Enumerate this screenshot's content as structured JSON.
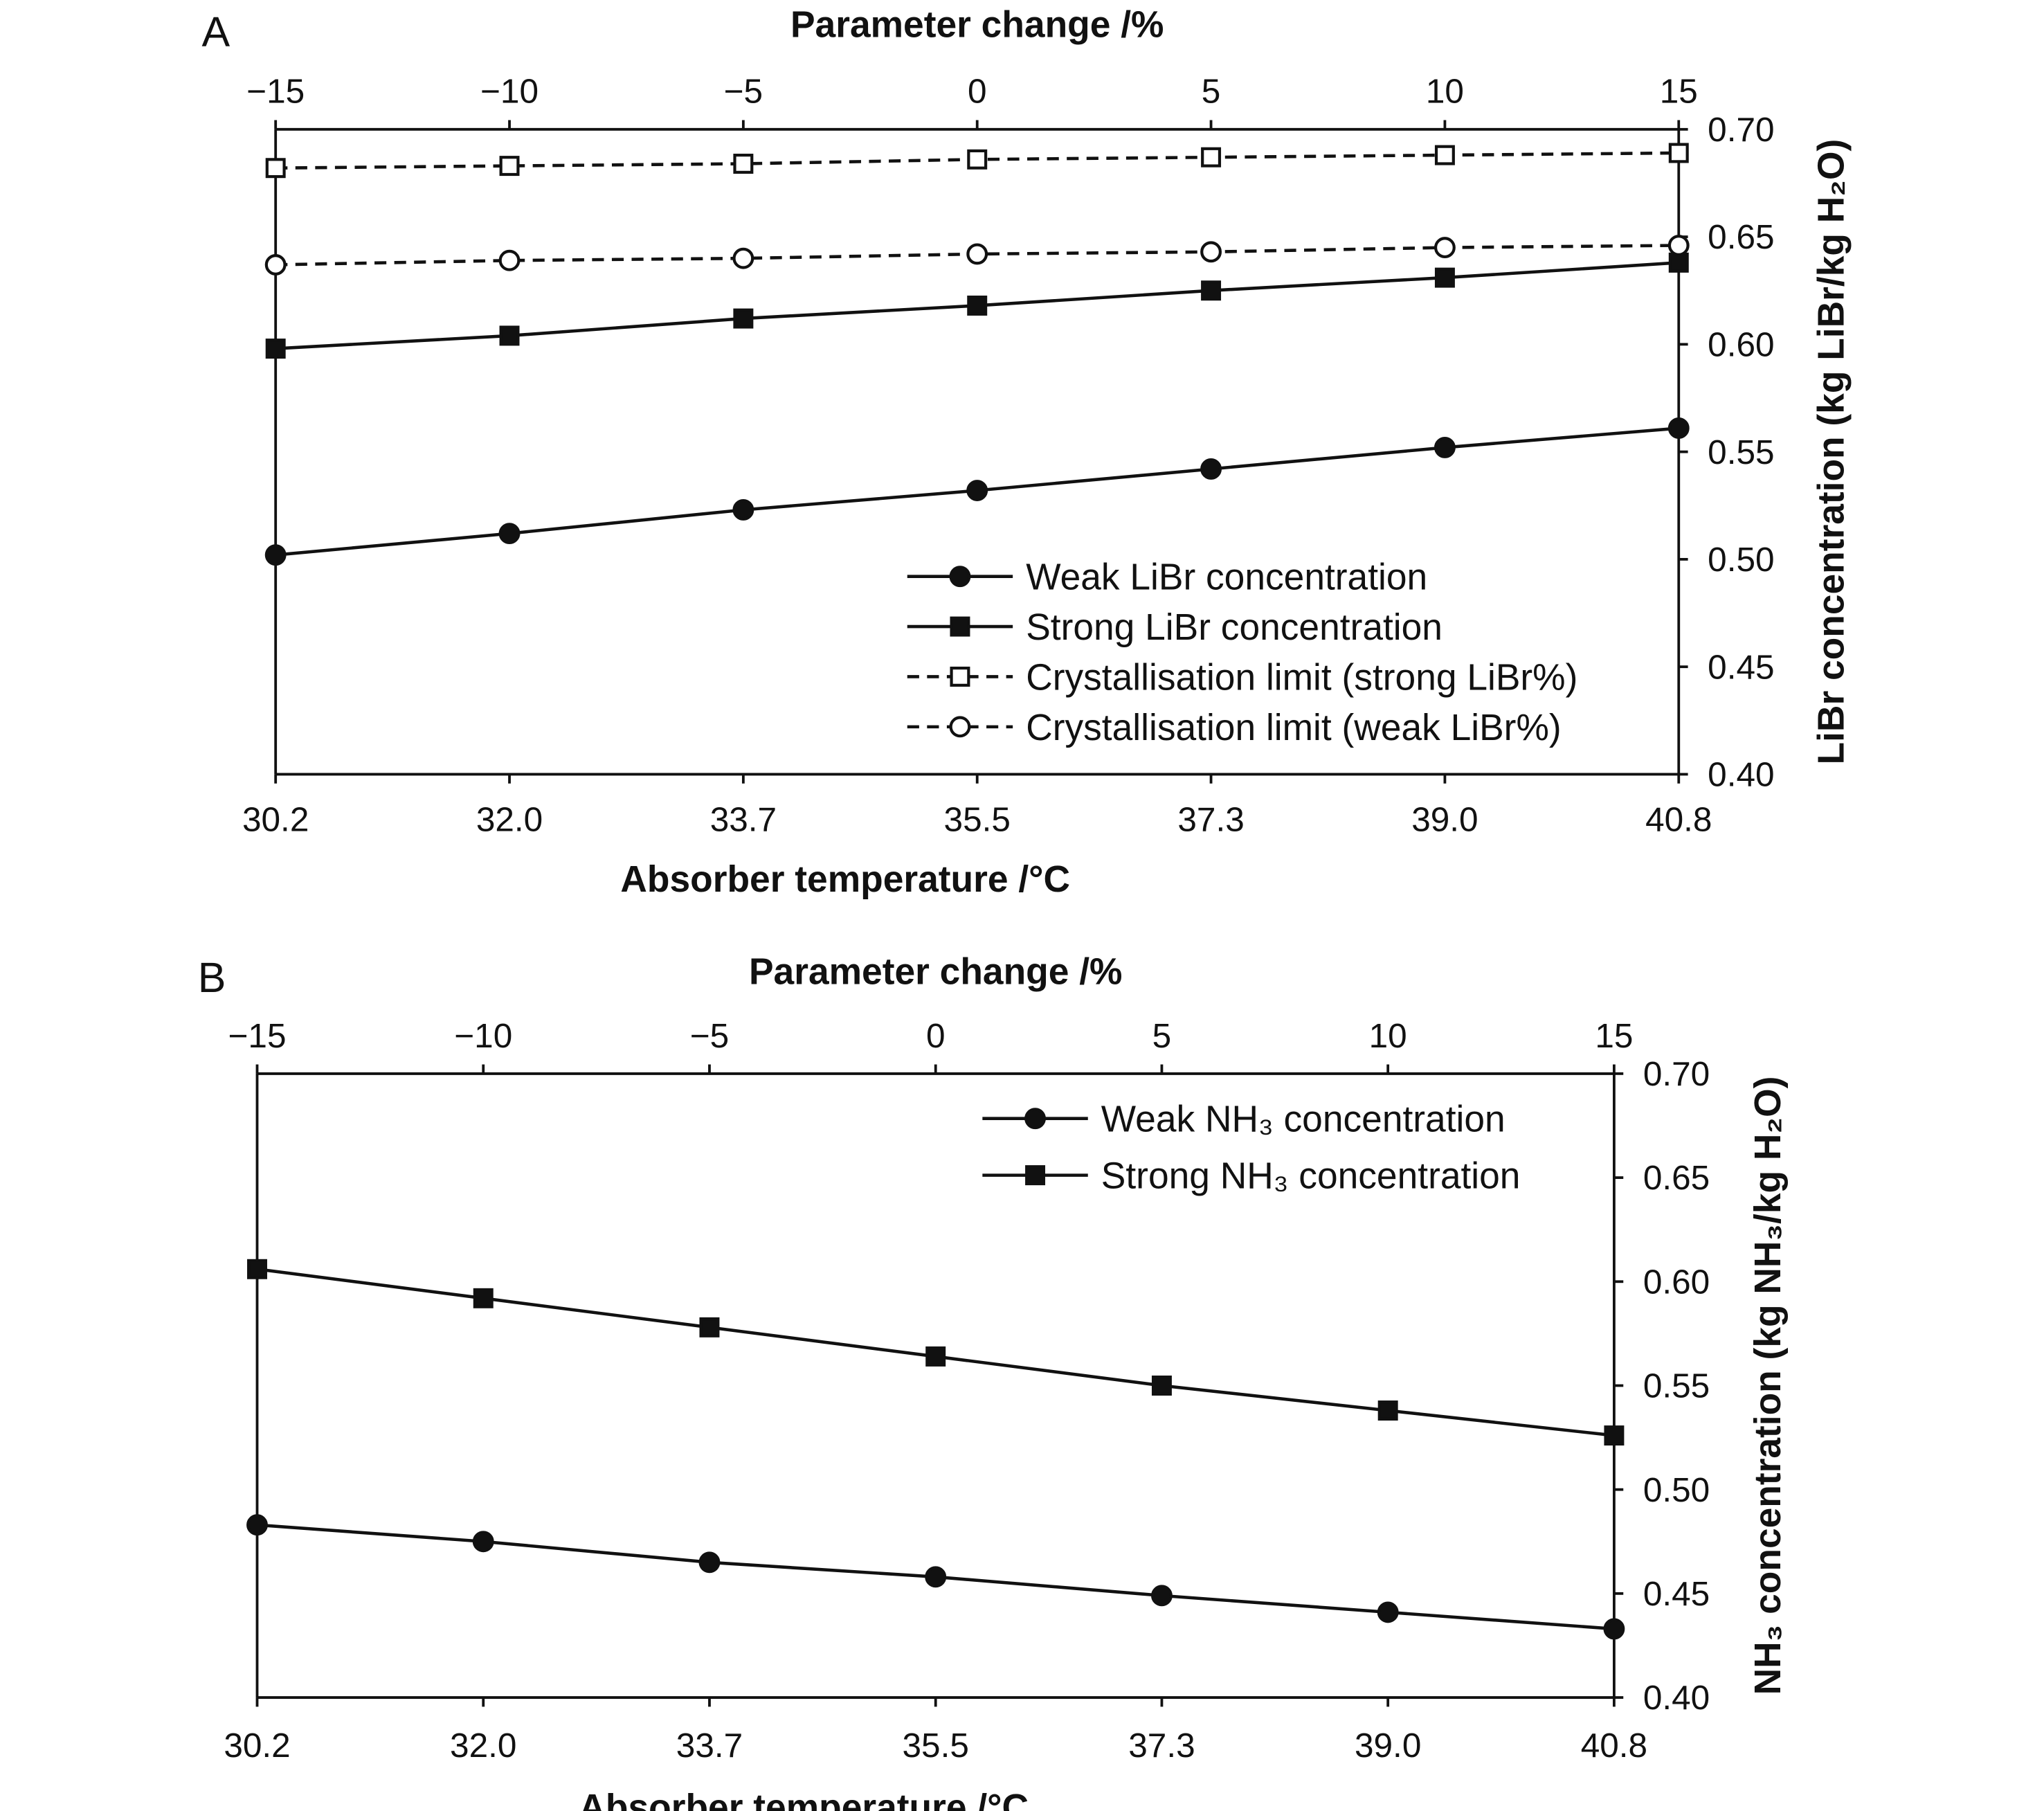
{
  "chart_data": [
    {
      "type": "line",
      "panel_label": "A",
      "top_xlabel": "Parameter change /%",
      "top_ticks": [
        "−15",
        "−10",
        "−5",
        "0",
        "5",
        "10",
        "15"
      ],
      "xlabel": "Absorber temperature /°C",
      "x_ticks": [
        "30.2",
        "32.0",
        "33.7",
        "35.5",
        "37.3",
        "39.0",
        "40.8"
      ],
      "x": [
        30.2,
        32.0,
        33.7,
        35.5,
        37.3,
        39.0,
        40.8
      ],
      "ylabel": "LiBr concentration (kg LiBr/kg H₂O)",
      "ylim": [
        0.4,
        0.7
      ],
      "y_ticks": [
        "0.40",
        "0.45",
        "0.50",
        "0.55",
        "0.60",
        "0.65",
        "0.70"
      ],
      "legend_position": "bottom-right",
      "series": [
        {
          "name": "Weak LiBr concentration",
          "marker": "circle-filled",
          "dash": false,
          "values": [
            0.502,
            0.512,
            0.523,
            0.532,
            0.542,
            0.552,
            0.561
          ]
        },
        {
          "name": "Strong LiBr concentration",
          "marker": "square-filled",
          "dash": false,
          "values": [
            0.598,
            0.604,
            0.612,
            0.618,
            0.625,
            0.631,
            0.638
          ]
        },
        {
          "name": "Crystallisation limit (strong LiBr%)",
          "marker": "square-open",
          "dash": true,
          "values": [
            0.682,
            0.683,
            0.684,
            0.686,
            0.687,
            0.688,
            0.689
          ]
        },
        {
          "name": "Crystallisation limit (weak LiBr%)",
          "marker": "circle-open",
          "dash": true,
          "values": [
            0.637,
            0.639,
            0.64,
            0.642,
            0.643,
            0.645,
            0.646
          ]
        }
      ]
    },
    {
      "type": "line",
      "panel_label": "B",
      "top_xlabel": "Parameter change /%",
      "top_ticks": [
        "−15",
        "−10",
        "−5",
        "0",
        "5",
        "10",
        "15"
      ],
      "xlabel": "Absorber temperature /°C",
      "x_ticks": [
        "30.2",
        "32.0",
        "33.7",
        "35.5",
        "37.3",
        "39.0",
        "40.8"
      ],
      "x": [
        30.2,
        32.0,
        33.7,
        35.5,
        37.3,
        39.0,
        40.8
      ],
      "ylabel": "NH₃ concentration (kg NH₃/kg H₂O)",
      "ylim": [
        0.4,
        0.7
      ],
      "y_ticks": [
        "0.40",
        "0.45",
        "0.50",
        "0.55",
        "0.60",
        "0.65",
        "0.70"
      ],
      "legend_position": "top-right",
      "series": [
        {
          "name": "Weak NH₃ concentration",
          "marker": "circle-filled",
          "dash": false,
          "values": [
            0.483,
            0.475,
            0.465,
            0.458,
            0.449,
            0.441,
            0.433
          ]
        },
        {
          "name": "Strong NH₃ concentration",
          "marker": "square-filled",
          "dash": false,
          "values": [
            0.606,
            0.592,
            0.578,
            0.564,
            0.55,
            0.538,
            0.526
          ]
        }
      ]
    }
  ]
}
